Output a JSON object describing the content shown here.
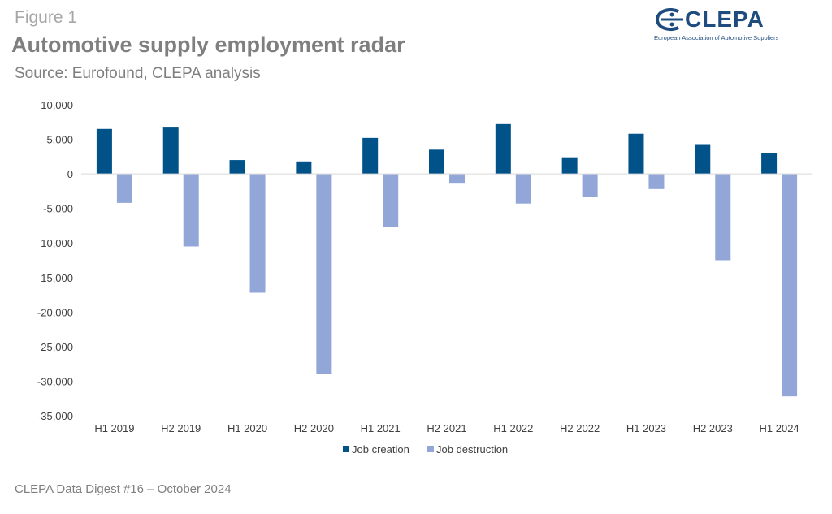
{
  "header": {
    "figure_label": "Figure 1",
    "title": "Automotive supply employment radar",
    "source": "Source: Eurofound, CLEPA analysis"
  },
  "logo": {
    "name": "CLEPA",
    "tagline": "European Association of Automotive Suppliers"
  },
  "footer": {
    "text": "CLEPA Data Digest #16 – October 2024"
  },
  "colors": {
    "creation": "#005289",
    "destruction": "#93a6d8",
    "axis": "#d9d9d9",
    "brand": "#1e4c7e"
  },
  "chart_data": {
    "type": "bar",
    "title": "Automotive supply employment radar",
    "xlabel": "",
    "ylabel": "",
    "ylim": [
      -35000,
      10000
    ],
    "yticks": [
      10000,
      5000,
      0,
      -5000,
      -10000,
      -15000,
      -20000,
      -25000,
      -30000,
      -35000
    ],
    "ytick_labels": [
      "10,000",
      "5,000",
      "0",
      "-5,000",
      "-10,000",
      "-15,000",
      "-20,000",
      "-25,000",
      "-30,000",
      "-35,000"
    ],
    "categories": [
      "H1 2019",
      "H2 2019",
      "H1 2020",
      "H2 2020",
      "H1 2021",
      "H2 2021",
      "H1 2022",
      "H2 2022",
      "H1 2023",
      "H2 2023",
      "H1 2024"
    ],
    "series": [
      {
        "name": "Job creation",
        "values": [
          6500,
          6700,
          2000,
          1800,
          5200,
          3500,
          7200,
          2400,
          5800,
          4300,
          3000
        ]
      },
      {
        "name": "Job destruction",
        "values": [
          -4200,
          -10500,
          -17200,
          -29000,
          -7700,
          -1300,
          -4300,
          -3300,
          -2200,
          -12500,
          -32200
        ]
      }
    ],
    "legend_position": "bottom-center",
    "grid": false
  }
}
